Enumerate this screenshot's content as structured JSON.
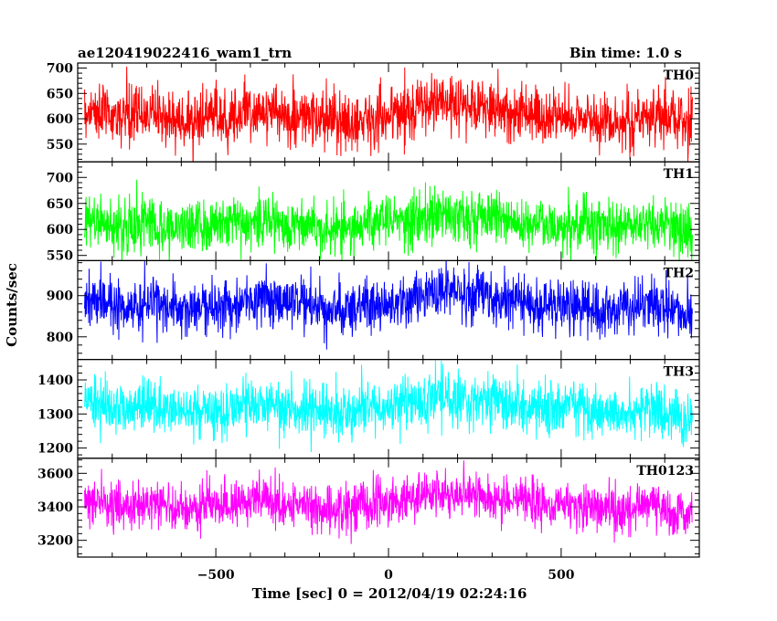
{
  "header": {
    "left_title": "ae120419022416_wam1_trn",
    "right_title": "Bin time: 1.0 s"
  },
  "chart_data": {
    "type": "line",
    "xlabel": "Time [sec] 0 = 2012/04/19 02:24:16",
    "ylabel": "Counts/sec",
    "xlim": [
      -900,
      900
    ],
    "x_ticks": [
      -500,
      0,
      500
    ],
    "x_range_data": [
      -880,
      880
    ],
    "bin_time_s": 1.0,
    "grid": false,
    "panels": [
      {
        "name": "TH0",
        "color": "#ff0000",
        "ylim": [
          515,
          710
        ],
        "y_ticks": [
          550,
          600,
          650,
          700
        ],
        "values": [
          612,
          618,
          610,
          605,
          603,
          608,
          615,
          611,
          604,
          596,
          593,
          600,
          605,
          602,
          604,
          611,
          614,
          618,
          613,
          608,
          603,
          602,
          604,
          599,
          592,
          588,
          593,
          600,
          606,
          605,
          607,
          612,
          620,
          628,
          632,
          630,
          627,
          628,
          630,
          627,
          620,
          617,
          615,
          612,
          604,
          600,
          603,
          607,
          605,
          596,
          595,
          592,
          595,
          600,
          604,
          607,
          602,
          600,
          599,
          596
        ],
        "noise_sd": 28
      },
      {
        "name": "TH1",
        "color": "#00ff00",
        "ylim": [
          540,
          730
        ],
        "y_ticks": [
          550,
          600,
          650,
          700
        ],
        "values": [
          610,
          614,
          610,
          606,
          604,
          608,
          613,
          610,
          606,
          602,
          604,
          608,
          610,
          609,
          611,
          615,
          618,
          620,
          616,
          612,
          610,
          608,
          610,
          606,
          602,
          600,
          603,
          608,
          612,
          612,
          615,
          618,
          624,
          628,
          630,
          628,
          626,
          628,
          628,
          625,
          620,
          618,
          617,
          615,
          610,
          607,
          609,
          612,
          611,
          606,
          604,
          602,
          604,
          606,
          609,
          611,
          608,
          605,
          603,
          601
        ],
        "noise_sd": 26
      },
      {
        "name": "TH2",
        "color": "#0000ff",
        "ylim": [
          745,
          985
        ],
        "y_ticks": [
          800,
          900
        ],
        "values": [
          878,
          885,
          880,
          874,
          870,
          876,
          884,
          880,
          873,
          866,
          864,
          870,
          876,
          874,
          876,
          884,
          888,
          892,
          886,
          880,
          876,
          875,
          877,
          872,
          865,
          860,
          866,
          873,
          880,
          879,
          882,
          887,
          896,
          904,
          908,
          906,
          903,
          904,
          906,
          902,
          895,
          892,
          890,
          887,
          878,
          874,
          877,
          881,
          879,
          870,
          868,
          866,
          868,
          872,
          876,
          878,
          872,
          866,
          860,
          852
        ],
        "noise_sd": 32
      },
      {
        "name": "TH3",
        "color": "#00ffff",
        "ylim": [
          1170,
          1460
        ],
        "y_ticks": [
          1200,
          1300,
          1400
        ],
        "values": [
          1318,
          1326,
          1320,
          1313,
          1309,
          1315,
          1324,
          1320,
          1312,
          1304,
          1302,
          1308,
          1314,
          1312,
          1314,
          1322,
          1326,
          1330,
          1324,
          1318,
          1314,
          1313,
          1315,
          1310,
          1302,
          1298,
          1304,
          1312,
          1320,
          1318,
          1322,
          1328,
          1338,
          1346,
          1350,
          1348,
          1345,
          1346,
          1348,
          1344,
          1336,
          1332,
          1330,
          1326,
          1316,
          1312,
          1315,
          1320,
          1318,
          1308,
          1306,
          1303,
          1305,
          1309,
          1313,
          1315,
          1306,
          1296,
          1288,
          1280
        ],
        "noise_sd": 40
      },
      {
        "name": "TH0123",
        "color": "#ff00ff",
        "ylim": [
          3100,
          3690
        ],
        "y_ticks": [
          3200,
          3400,
          3600
        ],
        "values": [
          3418,
          3432,
          3422,
          3408,
          3400,
          3412,
          3428,
          3420,
          3404,
          3388,
          3384,
          3396,
          3408,
          3404,
          3408,
          3424,
          3432,
          3440,
          3428,
          3416,
          3408,
          3406,
          3410,
          3400,
          3384,
          3376,
          3388,
          3404,
          3420,
          3416,
          3424,
          3436,
          3456,
          3472,
          3480,
          3476,
          3470,
          3472,
          3476,
          3468,
          3452,
          3444,
          3440,
          3432,
          3412,
          3404,
          3410,
          3420,
          3416,
          3396,
          3392,
          3386,
          3390,
          3398,
          3406,
          3410,
          3390,
          3368,
          3350,
          3330
        ],
        "noise_sd": 70
      }
    ]
  }
}
